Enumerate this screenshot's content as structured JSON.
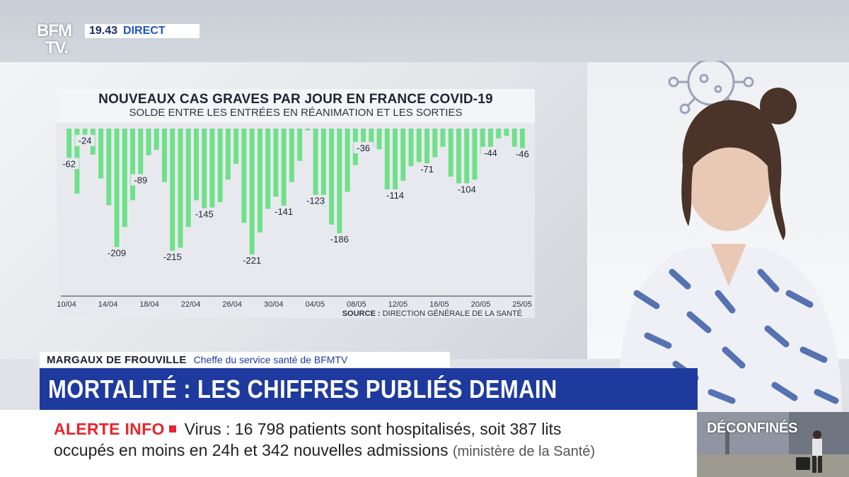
{
  "channel": {
    "logo_line1": "BFM",
    "logo_line2": "TV.",
    "time": "19.43",
    "live": "DIRECT"
  },
  "colors": {
    "bar": "#6fe08a",
    "headline_bg": "#1e3a9e",
    "alert": "#e6262e",
    "panel_bg": "#e8e9ee"
  },
  "chart_data": {
    "type": "bar",
    "title": "NOUVEAUX CAS GRAVES PAR JOUR EN FRANCE COVID-19",
    "subtitle": "SOLDE ENTRE LES ENTRÉES EN RÉANIMATION ET LES SORTIES",
    "source_label": "SOURCE :",
    "source_text": "DIRECTION GÉNÉRALE DE LA SANTÉ",
    "x_tick_labels": [
      "10/04",
      "14/04",
      "18/04",
      "22/04",
      "26/04",
      "30/04",
      "04/05",
      "08/05",
      "12/05",
      "16/05",
      "20/05",
      "25/05"
    ],
    "ylim": [
      -235,
      0
    ],
    "grid": false,
    "values": [
      -62,
      -107,
      -24,
      -43,
      -82,
      -126,
      -209,
      -162,
      -118,
      -89,
      -44,
      -35,
      -88,
      -215,
      -196,
      -162,
      -118,
      -145,
      -130,
      -121,
      -84,
      -58,
      -155,
      -221,
      -171,
      -132,
      -112,
      -141,
      -88,
      -53,
      -3,
      -123,
      -128,
      -158,
      -186,
      -104,
      -60,
      -36,
      -30,
      -34,
      -102,
      -114,
      -86,
      -62,
      -55,
      -71,
      -47,
      -30,
      -79,
      -106,
      -104,
      -84,
      -42,
      -44,
      -16,
      -12,
      -30,
      -46
    ],
    "value_labels": [
      {
        "index": 0,
        "text": "-62"
      },
      {
        "index": 2,
        "text": "-24"
      },
      {
        "index": 6,
        "text": "-209"
      },
      {
        "index": 9,
        "text": "-89"
      },
      {
        "index": 13,
        "text": "-215"
      },
      {
        "index": 17,
        "text": "-145"
      },
      {
        "index": 23,
        "text": "-221"
      },
      {
        "index": 27,
        "text": "-141"
      },
      {
        "index": 31,
        "text": "-123"
      },
      {
        "index": 34,
        "text": "-186"
      },
      {
        "index": 37,
        "text": "-36"
      },
      {
        "index": 41,
        "text": "-114"
      },
      {
        "index": 45,
        "text": "-71"
      },
      {
        "index": 50,
        "text": "-104"
      },
      {
        "index": 53,
        "text": "-44"
      },
      {
        "index": 57,
        "text": "-46"
      }
    ]
  },
  "strap": {
    "name": "MARGAUX DE FROUVILLE",
    "role": "Cheffe du service santé de BFMTV"
  },
  "headline": "MORTALITÉ : LES CHIFFRES PUBLIÉS DEMAIN",
  "ticker": {
    "alert_label": "ALERTE INFO",
    "line1": "Virus : 16 798 patients sont hospitalisés, soit 387 lits",
    "line2": "occupés en moins en 24h et 342 nouvelles admissions",
    "source": "(ministère de la Santé)"
  },
  "side_box": {
    "label": "DÉCONFINÉS"
  }
}
